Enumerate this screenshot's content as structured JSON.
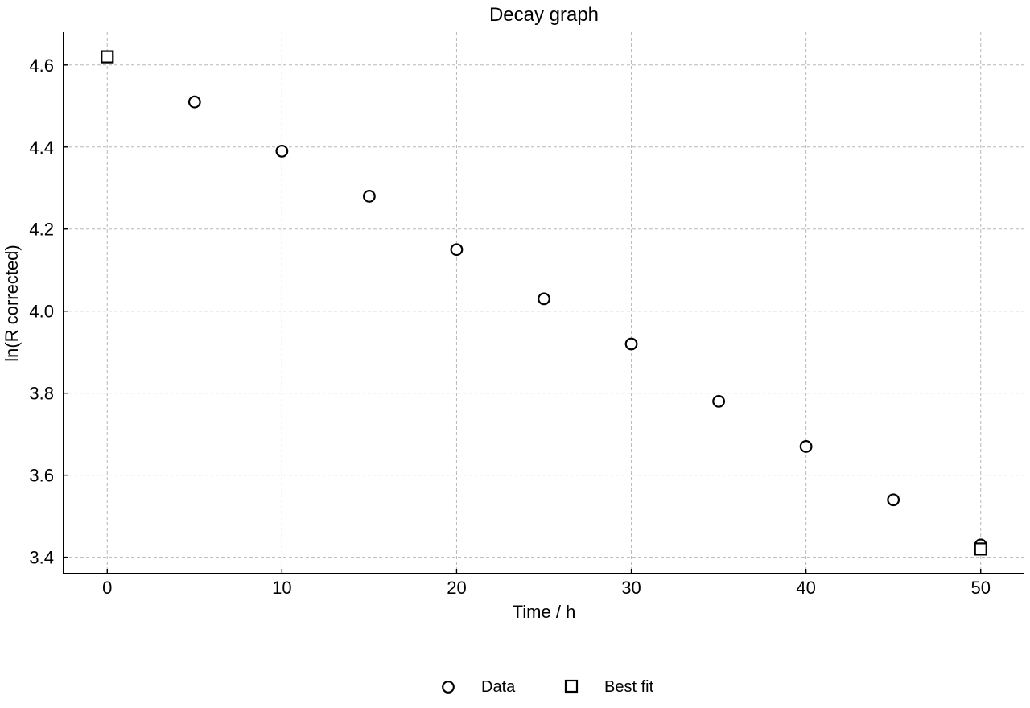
{
  "chart_data": {
    "type": "scatter",
    "title": "Decay graph",
    "xlabel": "Time / h",
    "ylabel": "ln(R corrected)",
    "xlim": [
      -2.5,
      52.5
    ],
    "ylim": [
      3.36,
      4.68
    ],
    "x_ticks": [
      0,
      10,
      20,
      30,
      40,
      50
    ],
    "y_ticks": [
      3.4,
      3.6,
      3.8,
      4.0,
      4.2,
      4.4,
      4.6
    ],
    "x_tick_labels": [
      "0",
      "10",
      "20",
      "30",
      "40",
      "50"
    ],
    "y_tick_labels": [
      "3.4",
      "3.6",
      "3.8",
      "4.0",
      "4.2",
      "4.4",
      "4.6"
    ],
    "grid": true,
    "legend_position": "bottom-center",
    "series": [
      {
        "name": "Data",
        "marker": "circle",
        "color": "#000000",
        "x": [
          0,
          5,
          10,
          15,
          20,
          25,
          30,
          35,
          40,
          45,
          50
        ],
        "y": [
          4.62,
          4.51,
          4.39,
          4.28,
          4.15,
          4.03,
          3.92,
          3.78,
          3.67,
          3.54,
          3.43
        ]
      },
      {
        "name": "Best fit",
        "marker": "square",
        "color": "#000000",
        "x": [
          0,
          50
        ],
        "y": [
          4.62,
          3.42
        ]
      }
    ]
  }
}
